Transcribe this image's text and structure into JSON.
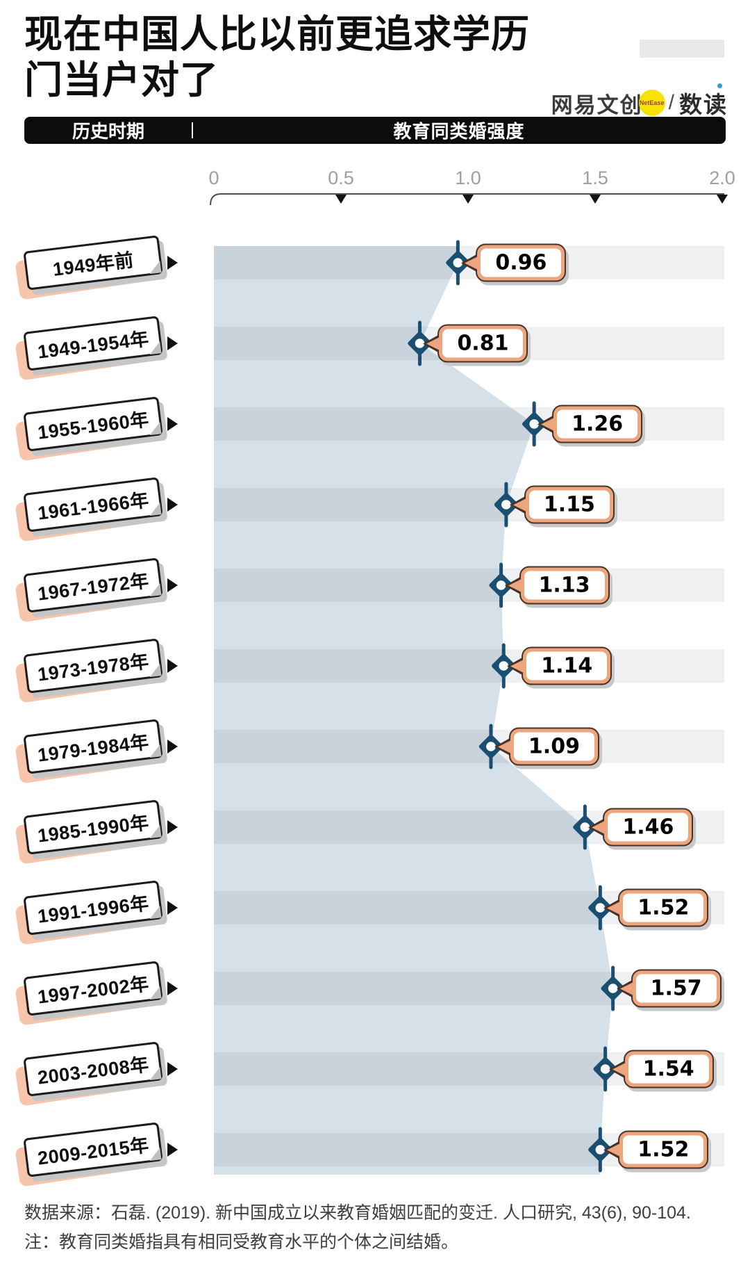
{
  "title": {
    "line1": "现在中国人比以前更追求学历",
    "line2": "门当户对了"
  },
  "logo": {
    "brand": "网易文创",
    "badge": "NetEase",
    "separator": "/",
    "product": "数读"
  },
  "header_bar": {
    "left_label": "历史时期",
    "right_label": "教育同类婚强度"
  },
  "chart_data": {
    "type": "area",
    "orientation": "horizontal-lollipop-area",
    "title": "教育同类婚强度",
    "category_axis_label": "历史时期",
    "categories": [
      "1949年前",
      "1949-1954年",
      "1955-1960年",
      "1961-1966年",
      "1967-1972年",
      "1973-1978年",
      "1979-1984年",
      "1985-1990年",
      "1991-1996年",
      "1997-2002年",
      "2003-2008年",
      "2009-2015年"
    ],
    "values": [
      0.96,
      0.81,
      1.26,
      1.15,
      1.13,
      1.14,
      1.09,
      1.46,
      1.52,
      1.57,
      1.54,
      1.52
    ],
    "value_labels": [
      "0.96",
      "0.81",
      "1.26",
      "1.15",
      "1.13",
      "1.14",
      "1.09",
      "1.46",
      "1.52",
      "1.57",
      "1.54",
      "1.52"
    ],
    "value_axis": {
      "min": 0,
      "max": 2.0,
      "ticks": [
        0,
        0.5,
        1.0,
        1.5,
        2.0
      ],
      "tick_labels": [
        "0",
        "0.5",
        "1.0",
        "1.5",
        "2.0"
      ],
      "position": "top"
    },
    "grid": "alternating-row-stripes",
    "legend": "none"
  },
  "colors": {
    "area_fill": "#d5e0e8",
    "stripe_overlay": "rgba(42,54,63,0.075)",
    "marker_navy": "#1b4f72",
    "bubble_border_salmon": "#eca57d",
    "tag_salmon": "#f7c5ac",
    "bar_black": "#0c0c0c",
    "axis_text_gray": "#9d9fa1",
    "logo_yellow": "#f6e400"
  },
  "footer": {
    "source": "数据来源：石磊. (2019). 新中国成立以来教育婚姻匹配的变迁. 人口研究, 43(6), 90-104.",
    "note": "注：教育同类婚指具有相同受教育水平的个体之间结婚。"
  }
}
